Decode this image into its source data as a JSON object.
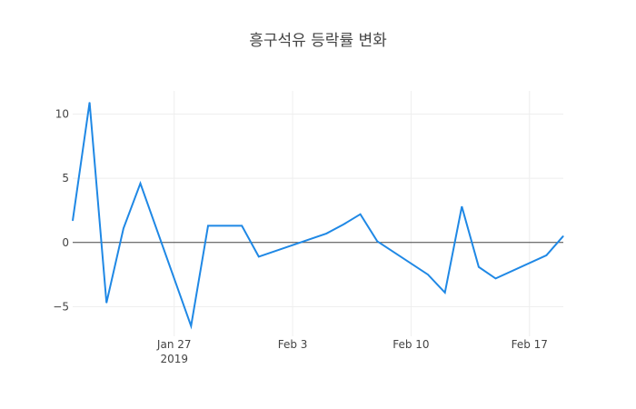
{
  "chart_data": {
    "type": "line",
    "title": "흥구석유 등락률 변화",
    "xlabel": "",
    "ylabel": "",
    "x_ticks": [
      {
        "date": "2019-01-27",
        "label": "Jan 27",
        "sublabel": "2019"
      },
      {
        "date": "2019-02-03",
        "label": "Feb 3",
        "sublabel": ""
      },
      {
        "date": "2019-02-10",
        "label": "Feb 10",
        "sublabel": ""
      },
      {
        "date": "2019-02-17",
        "label": "Feb 17",
        "sublabel": ""
      }
    ],
    "y_ticks": [
      -5,
      0,
      5,
      10
    ],
    "xlim": [
      "2019-01-21",
      "2019-02-19"
    ],
    "ylim": [
      -7.3,
      11.8
    ],
    "grid": true,
    "line_color": "#1f88e5",
    "series": [
      {
        "name": "",
        "x": [
          "2019-01-21",
          "2019-01-22",
          "2019-01-23",
          "2019-01-24",
          "2019-01-25",
          "2019-01-28",
          "2019-01-29",
          "2019-01-30",
          "2019-01-31",
          "2019-02-01",
          "2019-02-05",
          "2019-02-06",
          "2019-02-07",
          "2019-02-08",
          "2019-02-11",
          "2019-02-12",
          "2019-02-13",
          "2019-02-14",
          "2019-02-15",
          "2019-02-18",
          "2019-02-19"
        ],
        "y": [
          1.7,
          10.9,
          -4.7,
          1.1,
          4.6,
          -6.5,
          1.3,
          1.3,
          1.3,
          -1.1,
          0.7,
          1.4,
          2.2,
          0.1,
          -2.5,
          -3.9,
          2.8,
          -1.9,
          -2.8,
          -1.0,
          0.5
        ]
      }
    ]
  }
}
